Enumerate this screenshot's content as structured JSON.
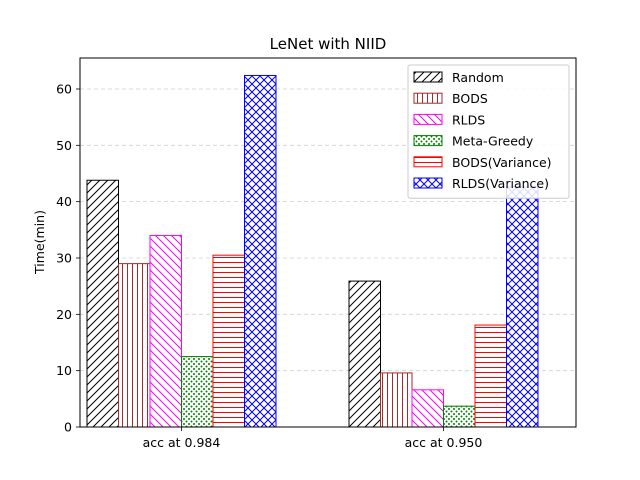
{
  "chart_data": {
    "type": "bar",
    "title": "LeNet with NIID",
    "xlabel": "",
    "ylabel": "Time(min)",
    "categories": [
      "acc at 0.984",
      "acc at 0.950"
    ],
    "ylim": [
      0,
      65.5
    ],
    "yticks": [
      0,
      10,
      20,
      30,
      40,
      50,
      60
    ],
    "grid": "y-dashed",
    "legend_position": "top-right",
    "series": [
      {
        "name": "Random",
        "values": [
          43.8,
          25.9
        ],
        "color": "#000000",
        "hatch": "diagonal-forward"
      },
      {
        "name": "BODS",
        "values": [
          29.0,
          9.6
        ],
        "color": "#a52a2a",
        "hatch": "vertical"
      },
      {
        "name": "RLDS",
        "values": [
          34.0,
          6.6
        ],
        "color": "#ff00ff",
        "hatch": "diagonal-back"
      },
      {
        "name": "Meta-Greedy",
        "values": [
          12.5,
          3.7
        ],
        "color": "#008000",
        "hatch": "dots"
      },
      {
        "name": "BODS(Variance)",
        "values": [
          30.5,
          18.1
        ],
        "color": "#ff0000",
        "hatch": "horizontal"
      },
      {
        "name": "RLDS(Variance)",
        "values": [
          62.4,
          42.6
        ],
        "color": "#0000ff",
        "hatch": "crosshatch"
      }
    ]
  }
}
